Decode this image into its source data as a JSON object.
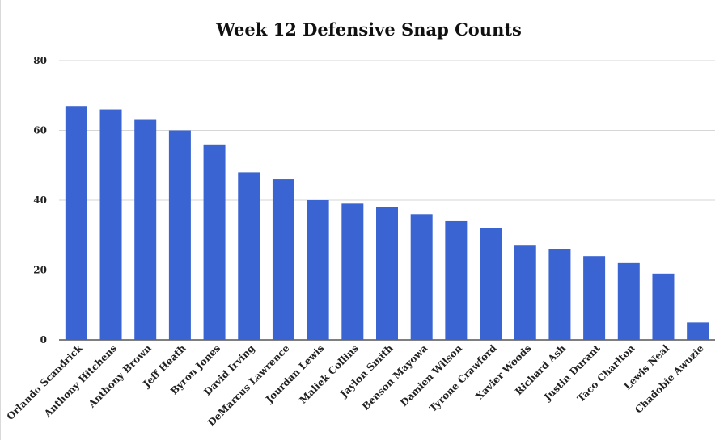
{
  "chart_data": {
    "type": "bar",
    "title": "Week 12 Defensive Snap Counts",
    "xlabel": "",
    "ylabel": "",
    "ylim": [
      0,
      80
    ],
    "yticks": [
      0,
      20,
      40,
      60,
      80
    ],
    "grid": true,
    "legend": "none",
    "bar_color": "#3a64d2",
    "categories": [
      "Orlando Scandrick",
      "Anthony Hitchens",
      "Anthony Brown",
      "Jeff Heath",
      "Byron Jones",
      "David Irving",
      "DeMarcus Lawrence",
      "Jourdan Lewis",
      "Maliek Collins",
      "Jaylon Smith",
      "Benson Mayowa",
      "Damien Wilson",
      "Tyrone Crawford",
      "Xavier Woods",
      "Richard Ash",
      "Justin Durant",
      "Taco Charlton",
      "Lewis Neal",
      "Chadobie Awuzie"
    ],
    "values": [
      67,
      66,
      63,
      60,
      56,
      48,
      46,
      40,
      39,
      38,
      36,
      34,
      32,
      27,
      26,
      24,
      22,
      19,
      5
    ]
  }
}
